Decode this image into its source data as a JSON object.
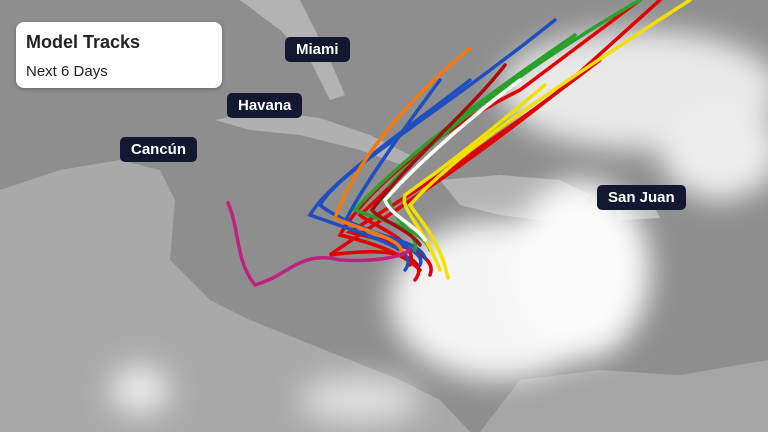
{
  "legend": {
    "title": "Model Tracks",
    "subtitle": "Next 6 Days"
  },
  "cities": [
    {
      "name": "Miami"
    },
    {
      "name": "Havana"
    },
    {
      "name": "Cancún"
    },
    {
      "name": "San Juan"
    }
  ],
  "colors": {
    "ocean": "#8e8e8e",
    "land": "#b3b3b3",
    "label_bg": "#121830",
    "track_colors": [
      "#e00000",
      "#1f4fbf",
      "#f07a10",
      "#2aa02a",
      "#f2e000",
      "#a01010",
      "#ffffff",
      "#c02080"
    ]
  }
}
